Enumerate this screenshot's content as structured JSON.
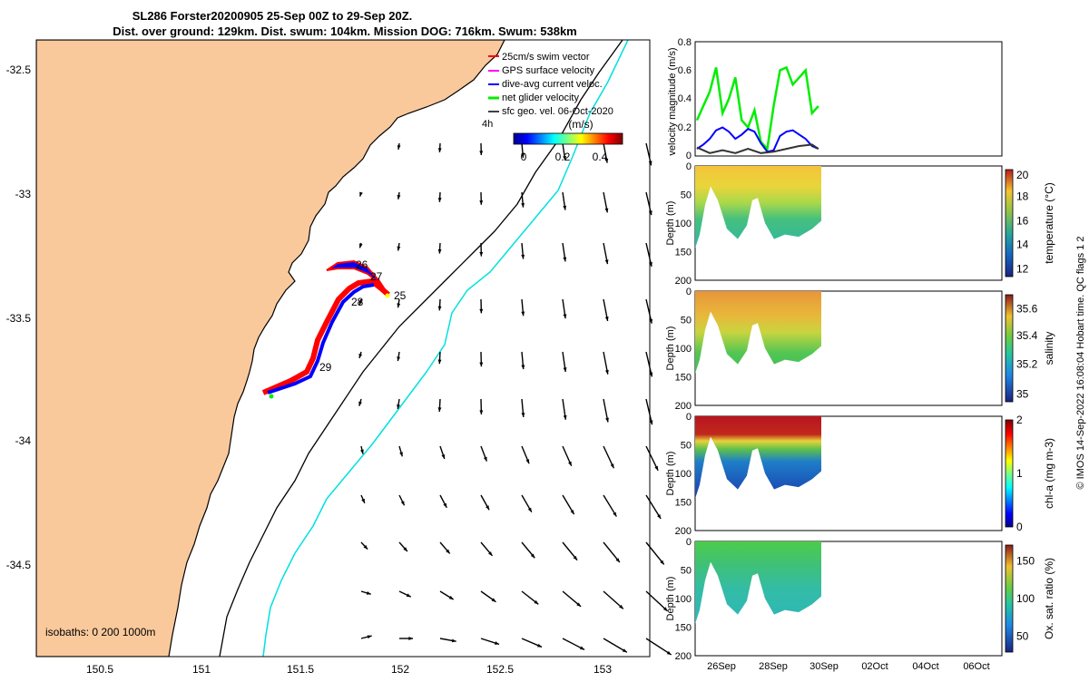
{
  "title": {
    "line1": "SL286 Forster20200905 25-Sep 00Z to 29-Sep 20Z.",
    "line2": "Dist. over ground: 129km. Dist. swum: 104km. Mission DOG: 716km. Swum: 538km"
  },
  "colors": {
    "land": "#f9c99c",
    "coast": "#000000",
    "isobath_200": "#000000",
    "isobath_1000": "#00e0e0",
    "track_red": "#ff0000",
    "track_blue": "#0000ff",
    "green": "#00ee00",
    "frame": "#000000"
  },
  "map": {
    "xticks": [
      "150.5",
      "151",
      "151.5",
      "152",
      "152.5",
      "153"
    ],
    "yticks": [
      "-32.5",
      "-33",
      "-33.5",
      "-34",
      "-34.5"
    ],
    "legend": [
      {
        "label": "25cm/s swim vector",
        "color": "#ff0000"
      },
      {
        "label": "GPS surface velocity",
        "color": "#ff00ff"
      },
      {
        "label": "dive-avg current veloc.",
        "color": "#0000ff"
      },
      {
        "label": "net glider velocity",
        "color": "#00ee00"
      },
      {
        "label": "sfc geo. vel. 06-Oct-2020",
        "color": "#000000"
      }
    ],
    "colorbar": {
      "title": "(m/s)",
      "ticks": [
        "0",
        "0.2",
        "0.4"
      ],
      "side_label": "4h"
    },
    "day_labels": [
      "26",
      "27",
      "28",
      "25",
      "29"
    ],
    "isobaths_label": "isobaths: 0   200  1000m"
  },
  "chart_data": [
    {
      "type": "line",
      "ylabel": "velocity magnitude (m/s)",
      "ylim": [
        0,
        0.8
      ],
      "yticks": [
        "0",
        "0.2",
        "0.4",
        "0.6",
        "0.8"
      ],
      "series": [
        {
          "color": "green",
          "x": [
            0,
            0.25,
            0.5,
            0.75,
            1,
            1.25,
            1.5,
            1.75,
            2,
            2.25,
            2.5,
            2.75,
            3,
            3.25,
            3.5,
            3.75,
            4,
            4.25,
            4.5,
            4.75
          ],
          "values": [
            0.25,
            0.35,
            0.45,
            0.62,
            0.3,
            0.4,
            0.55,
            0.25,
            0.2,
            0.32,
            0.1,
            0.05,
            0.35,
            0.6,
            0.62,
            0.5,
            0.55,
            0.6,
            0.3,
            0.35
          ]
        },
        {
          "color": "blue",
          "x": [
            0,
            0.25,
            0.5,
            0.75,
            1,
            1.25,
            1.5,
            1.75,
            2,
            2.25,
            2.5,
            2.75,
            3,
            3.25,
            3.5,
            3.75,
            4,
            4.25,
            4.5,
            4.75
          ],
          "values": [
            0.05,
            0.08,
            0.12,
            0.18,
            0.2,
            0.17,
            0.12,
            0.15,
            0.19,
            0.17,
            0.09,
            0.03,
            0.04,
            0.14,
            0.17,
            0.18,
            0.15,
            0.12,
            0.07,
            0.05
          ]
        },
        {
          "color": "black",
          "x": [
            0,
            0.5,
            1,
            1.5,
            2,
            2.5,
            3,
            3.5,
            4,
            4.5,
            4.75
          ],
          "values": [
            0.06,
            0.02,
            0.04,
            0.02,
            0.05,
            0.02,
            0.03,
            0.05,
            0.07,
            0.08,
            0.05
          ]
        }
      ]
    },
    {
      "type": "heatmap",
      "ylabel": "Depth (m)",
      "cbar_label": "temperature (°C)",
      "yticks": [
        "0",
        "50",
        "100",
        "150",
        "200"
      ],
      "cticks": [
        "12",
        "14",
        "16",
        "18",
        "20"
      ]
    },
    {
      "type": "heatmap",
      "ylabel": "Depth (m)",
      "cbar_label": "salinity",
      "yticks": [
        "0",
        "50",
        "100",
        "150",
        "200"
      ],
      "cticks": [
        "35",
        "35.2",
        "35.4",
        "35.6"
      ]
    },
    {
      "type": "heatmap",
      "ylabel": "Depth (m)",
      "cbar_label": "chl-a (mg m-3)",
      "yticks": [
        "0",
        "50",
        "100",
        "150",
        "200"
      ],
      "cticks": [
        "0",
        "1",
        "2"
      ]
    },
    {
      "type": "heatmap",
      "ylabel": "Depth (m)",
      "cbar_label": "Ox. sat. ratio (%)",
      "yticks": [
        "0",
        "50",
        "100",
        "150",
        "200"
      ],
      "cticks": [
        "50",
        "100",
        "150"
      ]
    }
  ],
  "time_axis": {
    "ticks": [
      "26Sep",
      "28Sep",
      "30Sep",
      "02Oct",
      "04Oct",
      "06Oct"
    ]
  },
  "footer": "© IMOS 14-Sep-2022 16:08:04 Hobart time. QC flags 1  2"
}
